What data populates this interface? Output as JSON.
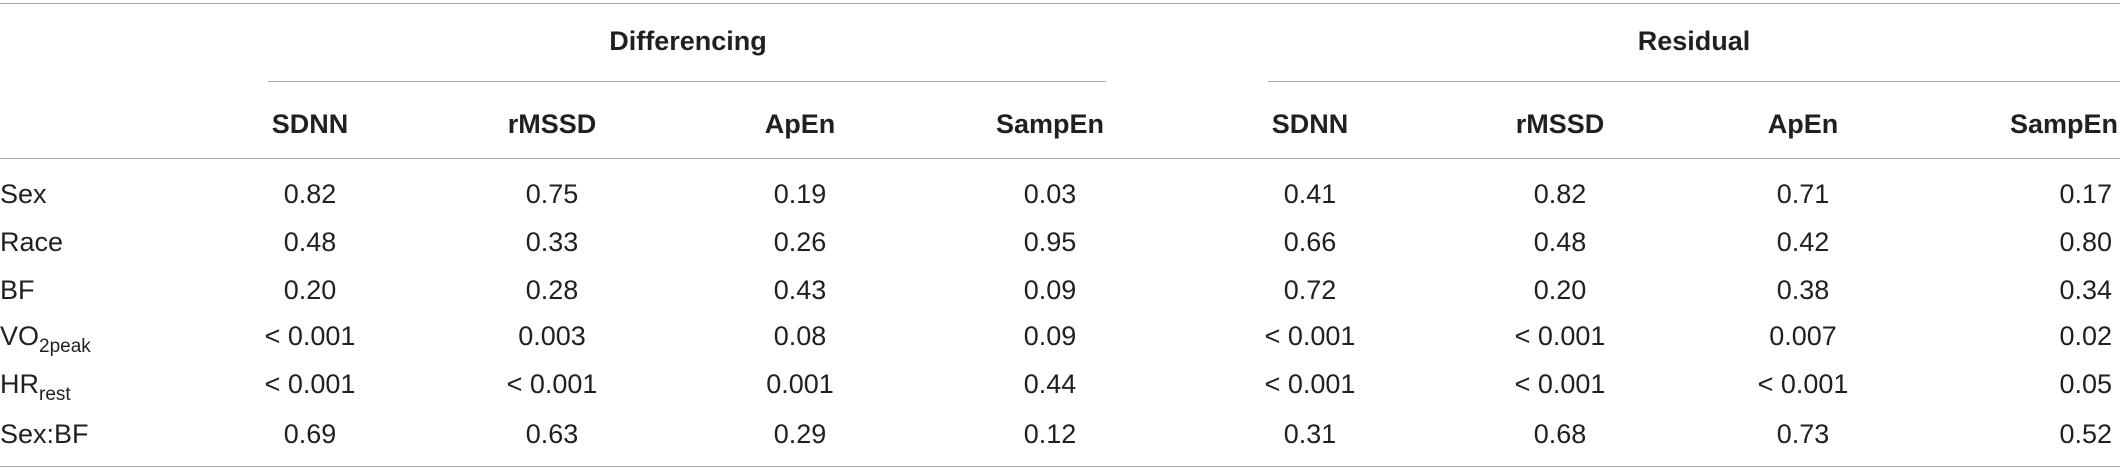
{
  "table": {
    "groups": [
      {
        "label": "Differencing"
      },
      {
        "label": "Residual"
      }
    ],
    "columns": [
      "SDNN",
      "rMSSD",
      "ApEn",
      "SampEn",
      "SDNN",
      "rMSSD",
      "ApEn",
      "SampEn"
    ],
    "rows": [
      {
        "label": "Sex",
        "sub": "",
        "values": [
          "0.82",
          "0.75",
          "0.19",
          "0.03",
          "0.41",
          "0.82",
          "0.71",
          "0.17"
        ]
      },
      {
        "label": "Race",
        "sub": "",
        "values": [
          "0.48",
          "0.33",
          "0.26",
          "0.95",
          "0.66",
          "0.48",
          "0.42",
          "0.80"
        ]
      },
      {
        "label": "BF",
        "sub": "",
        "values": [
          "0.20",
          "0.28",
          "0.43",
          "0.09",
          "0.72",
          "0.20",
          "0.38",
          "0.34"
        ]
      },
      {
        "label": "VO",
        "sub": "2peak",
        "values": [
          "< 0.001",
          "0.003",
          "0.08",
          "0.09",
          "< 0.001",
          "< 0.001",
          "0.007",
          "0.02"
        ]
      },
      {
        "label": "HR",
        "sub": "rest",
        "values": [
          "< 0.001",
          "< 0.001",
          "0.001",
          "0.44",
          "< 0.001",
          "< 0.001",
          "< 0.001",
          "0.05"
        ]
      },
      {
        "label": "Sex:BF",
        "sub": "",
        "values": [
          "0.69",
          "0.63",
          "0.29",
          "0.12",
          "0.31",
          "0.68",
          "0.73",
          "0.52"
        ]
      }
    ]
  }
}
